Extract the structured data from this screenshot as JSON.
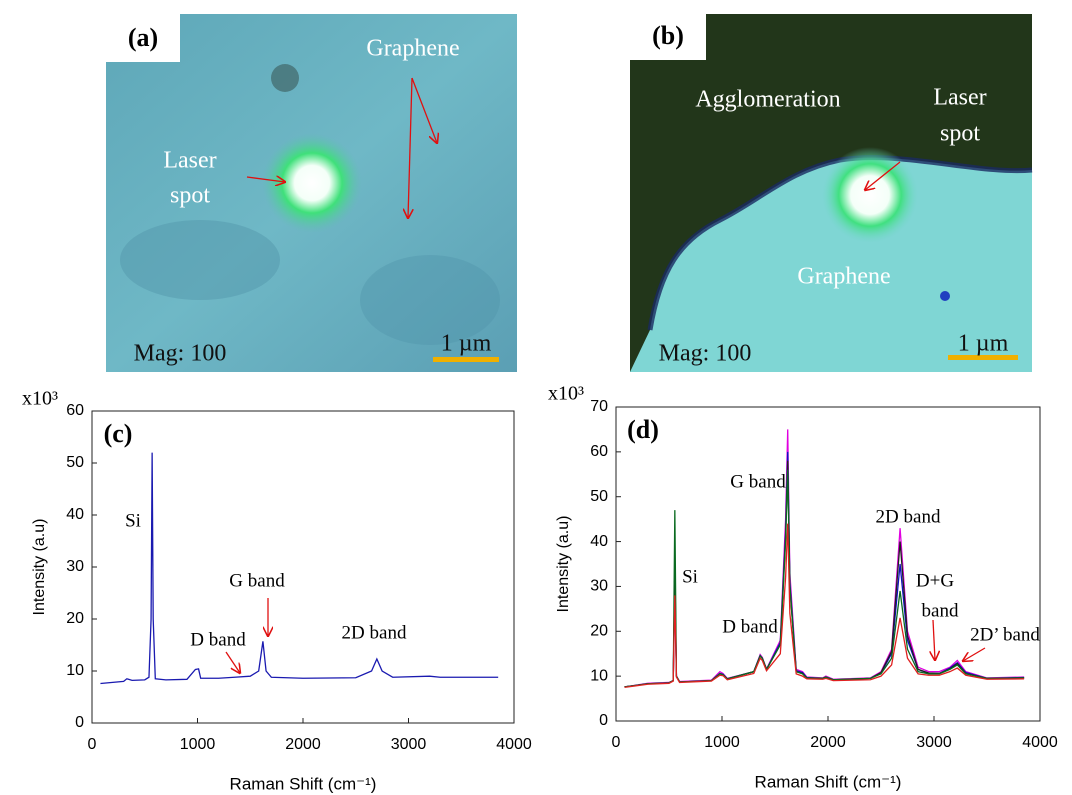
{
  "images": [
    {
      "label": "(a)",
      "texts": [
        "Graphene",
        "Laser",
        "spot"
      ],
      "magnification": "Mag: 100",
      "scale_bar": "1 µm"
    },
    {
      "label": "(b)",
      "texts": [
        "Agglomeration",
        "Laser",
        "spot",
        "Graphene"
      ],
      "magnification": "Mag: 100",
      "scale_bar": "1 µm"
    }
  ],
  "chart_data": [
    {
      "type": "line",
      "multiplier": "x10³",
      "ylabel": "Intensity (a.u)",
      "xlabel": "Raman Shift (cm⁻¹)",
      "annotations": [
        "(c)",
        "Si",
        "D band",
        "G band",
        "2D band"
      ],
      "x": [
        80,
        300,
        330,
        380,
        500,
        540,
        560,
        570,
        580,
        600,
        700,
        900,
        980,
        1010,
        1030,
        1200,
        1350,
        1500,
        1580,
        1620,
        1650,
        1700,
        2000,
        2500,
        2650,
        2700,
        2750,
        2850,
        3200,
        3300,
        3850
      ],
      "series": [
        {
          "color": "#1a1ab0",
          "values": [
            7.6,
            8.0,
            8.5,
            8.2,
            8.3,
            8.8,
            20,
            52,
            20,
            8.5,
            8.3,
            8.4,
            10.3,
            10.4,
            8.6,
            8.6,
            8.8,
            9.0,
            10,
            15.7,
            10,
            8.8,
            8.6,
            8.7,
            10,
            12.3,
            10,
            8.8,
            9,
            8.8,
            8.8
          ]
        }
      ],
      "xlim": [
        0,
        4000
      ],
      "ylim": [
        0,
        60
      ],
      "xticks": [
        0,
        1000,
        2000,
        3000,
        4000
      ],
      "yticks": [
        0,
        10,
        20,
        30,
        40,
        50,
        60
      ]
    },
    {
      "type": "line",
      "multiplier": "x10³",
      "ylabel": "Intensity (a.u)",
      "xlabel": "Raman Shift (cm⁻¹)",
      "annotations": [
        "(d)",
        "Si",
        "D band",
        "G band",
        "2D band",
        "D+G",
        "band",
        "2D’ band"
      ],
      "x": [
        80,
        300,
        500,
        540,
        555,
        570,
        600,
        900,
        980,
        1010,
        1050,
        1300,
        1360,
        1380,
        1420,
        1550,
        1600,
        1620,
        1640,
        1700,
        1760,
        1800,
        1950,
        1980,
        2050,
        2400,
        2500,
        2600,
        2680,
        2750,
        2850,
        2950,
        3050,
        3150,
        3220,
        3300,
        3500,
        3850
      ],
      "series": [
        {
          "color": "#e000e0",
          "values": [
            7.6,
            8.4,
            8.6,
            9,
            30,
            10,
            8.8,
            9.1,
            11,
            10.6,
            9.5,
            11,
            14.8,
            14.2,
            11.6,
            18,
            45,
            65,
            33,
            11.5,
            11,
            9.8,
            9.6,
            10,
            9.3,
            9.6,
            11,
            16,
            43,
            20,
            12,
            11,
            11,
            12,
            13.5,
            11,
            9.6,
            9.8
          ]
        },
        {
          "color": "#1010c0",
          "values": [
            7.6,
            8.3,
            8.5,
            9,
            32,
            10,
            8.7,
            9,
            10.6,
            10.4,
            9.4,
            11,
            14.6,
            14,
            11.5,
            17.5,
            42,
            60,
            31,
            11.2,
            10.8,
            9.7,
            9.5,
            9.8,
            9.2,
            9.5,
            10.7,
            15,
            35,
            18,
            11.5,
            10.6,
            10.6,
            11.8,
            13,
            10.8,
            9.5,
            9.7
          ]
        },
        {
          "color": "#202020",
          "values": [
            7.6,
            8.3,
            8.5,
            9,
            35,
            10,
            8.7,
            9,
            10.5,
            10.3,
            9.4,
            11,
            14.5,
            14,
            11.5,
            17,
            41,
            58,
            30,
            11,
            10.6,
            9.6,
            9.5,
            9.8,
            9.2,
            9.5,
            10.8,
            15.5,
            40,
            19,
            11.5,
            10.7,
            10.6,
            11.6,
            12.8,
            10.6,
            9.5,
            9.6
          ]
        },
        {
          "color": "#0a6a20",
          "values": [
            7.6,
            8.3,
            8.5,
            9,
            47,
            10,
            8.7,
            9,
            10.5,
            10.3,
            9.4,
            11,
            14.5,
            14,
            11.5,
            17,
            40,
            56,
            30,
            11,
            10.5,
            9.6,
            9.5,
            9.8,
            9.2,
            9.5,
            10.5,
            14,
            29,
            16,
            11,
            10.5,
            10.5,
            11.5,
            12.5,
            10.5,
            9.5,
            9.6
          ]
        },
        {
          "color": "#e02020",
          "values": [
            7.5,
            8.2,
            8.4,
            8.9,
            28,
            9.8,
            8.6,
            8.9,
            10.2,
            10.1,
            9.2,
            10.6,
            14,
            13.5,
            11.2,
            15,
            32,
            44,
            24,
            10.5,
            10,
            9.4,
            9.3,
            9.5,
            9,
            9.2,
            10,
            12.5,
            23,
            14,
            10.5,
            10.2,
            10.2,
            11,
            11.8,
            10.2,
            9.3,
            9.4
          ]
        }
      ],
      "xlim": [
        0,
        4000
      ],
      "ylim": [
        0,
        70
      ],
      "xticks": [
        0,
        1000,
        2000,
        3000,
        4000
      ],
      "yticks": [
        0,
        10,
        20,
        30,
        40,
        50,
        60,
        70
      ]
    }
  ]
}
